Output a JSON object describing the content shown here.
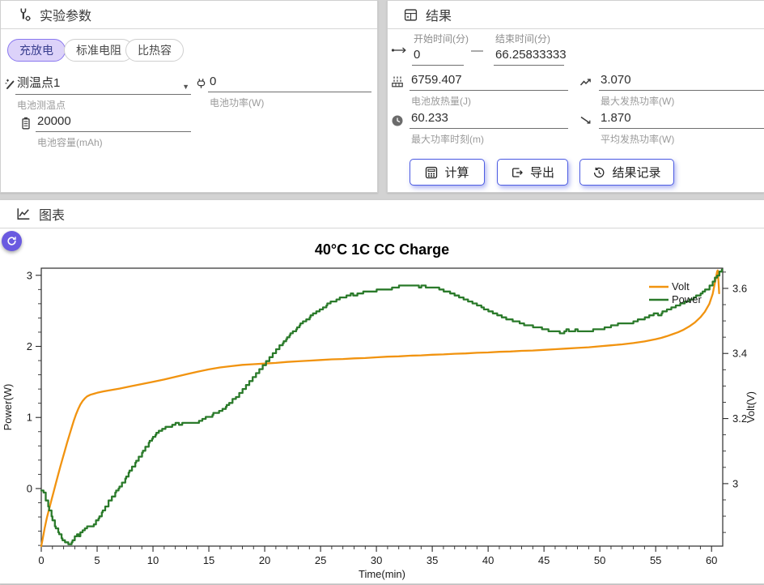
{
  "colors": {
    "accent_purple": "#6a5ae0",
    "chip_selected_bg": "#dcd2f9",
    "chip_selected_border": "#8a78ef",
    "button_border": "#4d5ce2",
    "volt_line": "#f1930f",
    "power_line": "#2a7a2a"
  },
  "icons": [
    "tools-icon",
    "calculator-panel-icon",
    "chart-icon",
    "probe-icon",
    "plug-icon",
    "battery-icon",
    "time-range-icon",
    "heat-icon",
    "trend-up-icon",
    "clock-icon",
    "trend-down-icon",
    "calc-icon",
    "export-icon",
    "history-icon",
    "refresh-icon",
    "chevron-down-icon"
  ],
  "params": {
    "title": "实验参数",
    "chips": [
      {
        "label": "充放电",
        "selected": true
      },
      {
        "label": "标准电阻",
        "selected": false
      },
      {
        "label": "比热容",
        "selected": false
      }
    ],
    "fields": {
      "temp_point": {
        "value": "测温点1",
        "label": "电池测温点"
      },
      "power": {
        "value": "0",
        "label": "电池功率(W)"
      },
      "capacity": {
        "value": "20000",
        "label": "电池容量(mAh)"
      }
    }
  },
  "results": {
    "title": "结果",
    "start": {
      "label": "开始时间(分)",
      "value": "0"
    },
    "end": {
      "label": "结束时间(分)",
      "value": "66.25833333"
    },
    "dash": "—",
    "heat": {
      "value": "6759.407",
      "label": "电池放热量(J)"
    },
    "maxp": {
      "value": "3.070",
      "label": "最大发热功率(W)"
    },
    "maxt": {
      "value": "60.233",
      "label": "最大功率时刻(m)"
    },
    "avgp": {
      "value": "1.870",
      "label": "平均发热功率(W)"
    },
    "buttons": {
      "calc": "计算",
      "export": "导出",
      "record": "结果记录"
    }
  },
  "chartpanel": {
    "title": "图表"
  },
  "chart_data": {
    "type": "line",
    "title": "40°C 1C CC Charge",
    "xlabel": "Time(min)",
    "ylabel_left": "Power(W)",
    "ylabel_right": "Volt(V)",
    "xlim": [
      0,
      61
    ],
    "x_major_ticks": [
      0,
      5,
      10,
      15,
      20,
      25,
      30,
      35,
      40,
      45,
      50,
      55,
      60
    ],
    "x_minor_step": 1,
    "power_ylim": [
      -0.81,
      3.1
    ],
    "power_major_ticks": [
      0,
      1,
      2,
      3
    ],
    "power_minor_step": 0.2,
    "volt_ylim": [
      2.808,
      3.662
    ],
    "volt_major_ticks": [
      3,
      3.2,
      3.4,
      3.6
    ],
    "volt_minor_step": 0.05,
    "grid": false,
    "legend_position": "upper right",
    "legend": [
      {
        "name": "Volt",
        "color": "#f1930f"
      },
      {
        "name": "Power",
        "color": "#2a7a2a"
      }
    ],
    "series": [
      {
        "name": "Volt",
        "axis": "volt",
        "color": "#f1930f",
        "style": "smooth",
        "points": [
          [
            0,
            2.808
          ],
          [
            0.15,
            2.835
          ],
          [
            0.3,
            2.862
          ],
          [
            0.5,
            2.895
          ],
          [
            0.7,
            2.922
          ],
          [
            0.9,
            2.948
          ],
          [
            1.1,
            2.974
          ],
          [
            1.3,
            3.0
          ],
          [
            1.5,
            3.026
          ],
          [
            1.7,
            3.052
          ],
          [
            1.9,
            3.076
          ],
          [
            2.1,
            3.1
          ],
          [
            2.3,
            3.124
          ],
          [
            2.5,
            3.147
          ],
          [
            2.7,
            3.17
          ],
          [
            2.9,
            3.192
          ],
          [
            3.1,
            3.212
          ],
          [
            3.3,
            3.229
          ],
          [
            3.5,
            3.243
          ],
          [
            3.7,
            3.254
          ],
          [
            3.9,
            3.262
          ],
          [
            4.1,
            3.268
          ],
          [
            4.4,
            3.273
          ],
          [
            4.7,
            3.276
          ],
          [
            5,
            3.279
          ],
          [
            5.5,
            3.283
          ],
          [
            6,
            3.286
          ],
          [
            7,
            3.292
          ],
          [
            8,
            3.299
          ],
          [
            9,
            3.306
          ],
          [
            10,
            3.313
          ],
          [
            11,
            3.32
          ],
          [
            12,
            3.328
          ],
          [
            13,
            3.336
          ],
          [
            14,
            3.344
          ],
          [
            15,
            3.351
          ],
          [
            16,
            3.357
          ],
          [
            17,
            3.361
          ],
          [
            18,
            3.365
          ],
          [
            19,
            3.367
          ],
          [
            20,
            3.369
          ],
          [
            21,
            3.371
          ],
          [
            22,
            3.374
          ],
          [
            23,
            3.376
          ],
          [
            24,
            3.378
          ],
          [
            25,
            3.38
          ],
          [
            26,
            3.382
          ],
          [
            27,
            3.383
          ],
          [
            28,
            3.385
          ],
          [
            29,
            3.386
          ],
          [
            30,
            3.388
          ],
          [
            31,
            3.39
          ],
          [
            32,
            3.391
          ],
          [
            33,
            3.393
          ],
          [
            34,
            3.394
          ],
          [
            35,
            3.396
          ],
          [
            36,
            3.397
          ],
          [
            37,
            3.399
          ],
          [
            38,
            3.4
          ],
          [
            39,
            3.402
          ],
          [
            40,
            3.403
          ],
          [
            41,
            3.405
          ],
          [
            42,
            3.406
          ],
          [
            43,
            3.408
          ],
          [
            44,
            3.409
          ],
          [
            45,
            3.411
          ],
          [
            46,
            3.413
          ],
          [
            47,
            3.415
          ],
          [
            48,
            3.417
          ],
          [
            49,
            3.419
          ],
          [
            50,
            3.422
          ],
          [
            51,
            3.425
          ],
          [
            52,
            3.428
          ],
          [
            53,
            3.432
          ],
          [
            54,
            3.437
          ],
          [
            55,
            3.444
          ],
          [
            55.5,
            3.448
          ],
          [
            56,
            3.453
          ],
          [
            56.5,
            3.459
          ],
          [
            57,
            3.465
          ],
          [
            57.5,
            3.473
          ],
          [
            58,
            3.483
          ],
          [
            58.5,
            3.495
          ],
          [
            59,
            3.511
          ],
          [
            59.4,
            3.528
          ],
          [
            59.8,
            3.552
          ],
          [
            60.1,
            3.583
          ],
          [
            60.35,
            3.625
          ],
          [
            60.5,
            3.652
          ],
          [
            60.55,
            3.655
          ],
          [
            60.62,
            3.62
          ],
          [
            60.68,
            3.585
          ]
        ]
      },
      {
        "name": "Power",
        "axis": "power",
        "color": "#2a7a2a",
        "style": "step",
        "points": [
          [
            0,
            -0.04
          ],
          [
            0.2,
            -0.07
          ],
          [
            0.4,
            -0.16
          ],
          [
            0.7,
            -0.3
          ],
          [
            1,
            -0.44
          ],
          [
            1.3,
            -0.56
          ],
          [
            1.6,
            -0.65
          ],
          [
            1.9,
            -0.72
          ],
          [
            2.2,
            -0.77
          ],
          [
            2.5,
            -0.78
          ],
          [
            2.8,
            -0.73
          ],
          [
            3,
            -0.68
          ],
          [
            3.2,
            -0.64
          ],
          [
            3.35,
            -0.66
          ],
          [
            3.5,
            -0.62
          ],
          [
            3.7,
            -0.58
          ],
          [
            3.9,
            -0.56
          ],
          [
            4.1,
            -0.53
          ],
          [
            4.3,
            -0.54
          ],
          [
            4.5,
            -0.52
          ],
          [
            4.7,
            -0.5
          ],
          [
            4.9,
            -0.46
          ],
          [
            5.2,
            -0.39
          ],
          [
            5.5,
            -0.31
          ],
          [
            5.8,
            -0.24
          ],
          [
            6.1,
            -0.16
          ],
          [
            6.4,
            -0.1
          ],
          [
            6.7,
            -0.04
          ],
          [
            7,
            0.03
          ],
          [
            7.3,
            0.09
          ],
          [
            7.6,
            0.16
          ],
          [
            7.9,
            0.24
          ],
          [
            8.2,
            0.32
          ],
          [
            8.5,
            0.39
          ],
          [
            8.8,
            0.46
          ],
          [
            9.1,
            0.53
          ],
          [
            9.4,
            0.6
          ],
          [
            9.7,
            0.66
          ],
          [
            10,
            0.72
          ],
          [
            10.3,
            0.77
          ],
          [
            10.6,
            0.81
          ],
          [
            10.9,
            0.85
          ],
          [
            11.2,
            0.87
          ],
          [
            11.5,
            0.88
          ],
          [
            11.8,
            0.9
          ],
          [
            12.1,
            0.92
          ],
          [
            12.4,
            0.9
          ],
          [
            12.7,
            0.92
          ],
          [
            13,
            0.91
          ],
          [
            13.3,
            0.93
          ],
          [
            13.6,
            0.92
          ],
          [
            13.9,
            0.93
          ],
          [
            14.2,
            0.95
          ],
          [
            14.5,
            0.98
          ],
          [
            14.8,
            1.0
          ],
          [
            15.1,
            1.02
          ],
          [
            15.4,
            1.05
          ],
          [
            15.7,
            1.07
          ],
          [
            16,
            1.1
          ],
          [
            16.3,
            1.13
          ],
          [
            16.6,
            1.17
          ],
          [
            16.9,
            1.21
          ],
          [
            17.2,
            1.26
          ],
          [
            17.5,
            1.3
          ],
          [
            17.8,
            1.35
          ],
          [
            18.1,
            1.4
          ],
          [
            18.4,
            1.46
          ],
          [
            18.7,
            1.52
          ],
          [
            19,
            1.58
          ],
          [
            19.3,
            1.63
          ],
          [
            19.6,
            1.69
          ],
          [
            19.9,
            1.74
          ],
          [
            20.2,
            1.8
          ],
          [
            20.5,
            1.86
          ],
          [
            20.8,
            1.91
          ],
          [
            21.1,
            1.97
          ],
          [
            21.4,
            2.02
          ],
          [
            21.7,
            2.07
          ],
          [
            22,
            2.12
          ],
          [
            22.3,
            2.17
          ],
          [
            22.6,
            2.22
          ],
          [
            22.9,
            2.26
          ],
          [
            23.2,
            2.31
          ],
          [
            23.5,
            2.35
          ],
          [
            23.8,
            2.39
          ],
          [
            24.1,
            2.43
          ],
          [
            24.4,
            2.46
          ],
          [
            24.7,
            2.5
          ],
          [
            25,
            2.53
          ],
          [
            25.3,
            2.56
          ],
          [
            25.6,
            2.59
          ],
          [
            25.9,
            2.62
          ],
          [
            26.2,
            2.64
          ],
          [
            26.5,
            2.67
          ],
          [
            26.8,
            2.69
          ],
          [
            27.1,
            2.7
          ],
          [
            27.4,
            2.72
          ],
          [
            27.7,
            2.73
          ],
          [
            28,
            2.71
          ],
          [
            28.3,
            2.73
          ],
          [
            28.6,
            2.75
          ],
          [
            29,
            2.77
          ],
          [
            29.4,
            2.76
          ],
          [
            29.8,
            2.78
          ],
          [
            30.2,
            2.8
          ],
          [
            30.6,
            2.81
          ],
          [
            31,
            2.8
          ],
          [
            31.4,
            2.82
          ],
          [
            31.8,
            2.84
          ],
          [
            32.2,
            2.85
          ],
          [
            32.6,
            2.86
          ],
          [
            33,
            2.85
          ],
          [
            33.4,
            2.86
          ],
          [
            33.8,
            2.84
          ],
          [
            34.2,
            2.85
          ],
          [
            34.6,
            2.83
          ],
          [
            35,
            2.82
          ],
          [
            35.4,
            2.82
          ],
          [
            35.8,
            2.8
          ],
          [
            36.2,
            2.77
          ],
          [
            36.6,
            2.75
          ],
          [
            37,
            2.72
          ],
          [
            37.4,
            2.7
          ],
          [
            37.8,
            2.67
          ],
          [
            38.2,
            2.64
          ],
          [
            38.6,
            2.61
          ],
          [
            39,
            2.58
          ],
          [
            39.4,
            2.55
          ],
          [
            39.8,
            2.52
          ],
          [
            40.2,
            2.49
          ],
          [
            40.6,
            2.46
          ],
          [
            41,
            2.43
          ],
          [
            41.4,
            2.41
          ],
          [
            41.8,
            2.38
          ],
          [
            42.2,
            2.36
          ],
          [
            42.6,
            2.34
          ],
          [
            43,
            2.32
          ],
          [
            43.4,
            2.3
          ],
          [
            43.8,
            2.29
          ],
          [
            44.2,
            2.27
          ],
          [
            44.6,
            2.26
          ],
          [
            45,
            2.24
          ],
          [
            45.4,
            2.22
          ],
          [
            45.8,
            2.21
          ],
          [
            46.2,
            2.2
          ],
          [
            46.6,
            2.19
          ],
          [
            47,
            2.23
          ],
          [
            47.4,
            2.21
          ],
          [
            47.8,
            2.23
          ],
          [
            48.2,
            2.22
          ],
          [
            48.6,
            2.21
          ],
          [
            49,
            2.22
          ],
          [
            49.4,
            2.23
          ],
          [
            49.8,
            2.24
          ],
          [
            50.2,
            2.25
          ],
          [
            50.6,
            2.27
          ],
          [
            51,
            2.29
          ],
          [
            51.4,
            2.3
          ],
          [
            51.8,
            2.32
          ],
          [
            52.2,
            2.33
          ],
          [
            52.6,
            2.31
          ],
          [
            53,
            2.35
          ],
          [
            53.4,
            2.37
          ],
          [
            53.8,
            2.39
          ],
          [
            54.2,
            2.42
          ],
          [
            54.6,
            2.44
          ],
          [
            55,
            2.46
          ],
          [
            55.3,
            2.44
          ],
          [
            55.6,
            2.48
          ],
          [
            56,
            2.51
          ],
          [
            56.4,
            2.54
          ],
          [
            56.8,
            2.57
          ],
          [
            57.2,
            2.59
          ],
          [
            57.6,
            2.62
          ],
          [
            58,
            2.65
          ],
          [
            58.4,
            2.68
          ],
          [
            58.8,
            2.72
          ],
          [
            59.2,
            2.76
          ],
          [
            59.6,
            2.81
          ],
          [
            59.9,
            2.86
          ],
          [
            60.1,
            2.91
          ],
          [
            60.3,
            2.97
          ],
          [
            60.5,
            3.01
          ],
          [
            60.7,
            3.04
          ],
          [
            60.95,
            3.08
          ]
        ]
      }
    ]
  }
}
